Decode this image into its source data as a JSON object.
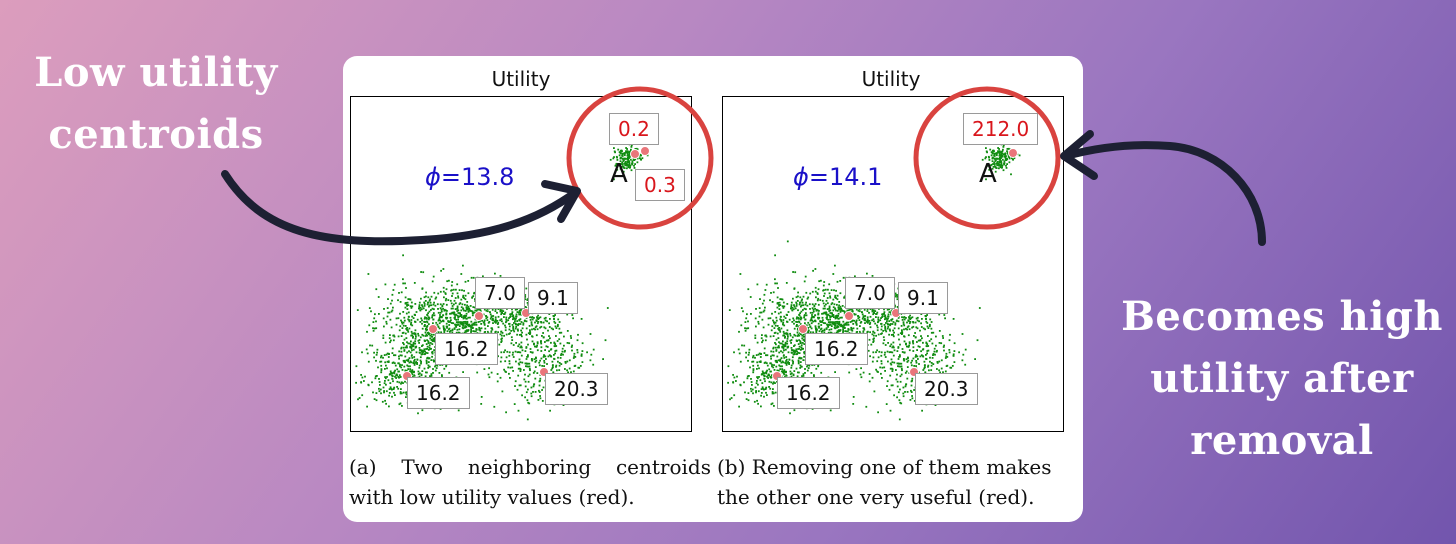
{
  "callouts": {
    "left": [
      "Low utility",
      "centroids"
    ],
    "right": [
      "Becomes high",
      "utility after",
      "removal"
    ]
  },
  "figure": {
    "panels": [
      {
        "title": "Utility",
        "phi_symbol": "ϕ",
        "phi_value": "=13.8",
        "cluster_label": "A",
        "centroid_labels": [
          "0.2",
          "0.3",
          "7.0",
          "9.1",
          "16.2",
          "16.2",
          "20.3"
        ],
        "caption": [
          "(a) Two neighboring centroids",
          "with low utility values (red)."
        ],
        "caption_words": [
          "(a)",
          "Two",
          "neighboring",
          "centroids"
        ]
      },
      {
        "title": "Utility",
        "phi_symbol": "ϕ",
        "phi_value": "=14.1",
        "cluster_label": "A",
        "centroid_labels": [
          "212.0",
          "7.0",
          "9.1",
          "16.2",
          "16.2",
          "20.3"
        ],
        "caption": [
          "(b) Removing one of them makes",
          "the other one very useful (red)."
        ]
      }
    ]
  },
  "colors": {
    "points": "#0f8c0f",
    "centroid": "#e9757a",
    "low_utility_text": "#d9161c",
    "phi_text": "#1a10c8",
    "highlight_circle": "#d9433f",
    "arrow": "#1d2033"
  }
}
